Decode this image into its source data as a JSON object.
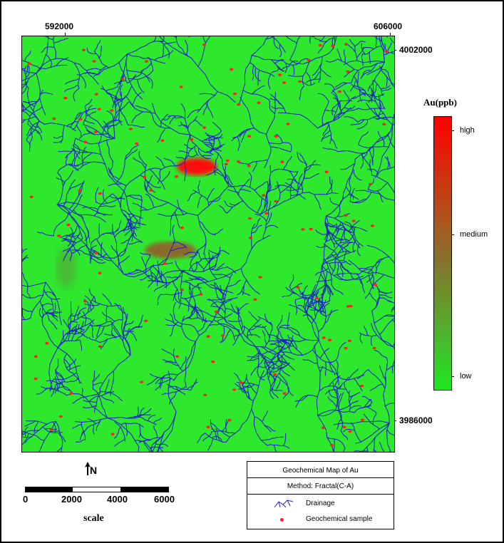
{
  "coords": {
    "x_left": "592000",
    "x_right": "606000",
    "y_top": "4002000",
    "y_bottom": "3986000"
  },
  "legend": {
    "variable": "Au(ppb)",
    "high": "high",
    "medium": "medium",
    "low": "low",
    "colors": {
      "high": "#ff0000",
      "medium": "#8c6c2c",
      "low": "#1ee81e"
    }
  },
  "map": {
    "background_color": "#2ee82e",
    "drainage_color": "#1c1cc8",
    "sample_color": "#ff2020"
  },
  "north": {
    "label": "N",
    "arrow_icon": "north-arrow-icon"
  },
  "scale": {
    "ticks": [
      "0",
      "2000",
      "4000",
      "6000"
    ],
    "label": "scale"
  },
  "info_box": {
    "title": "Geochemical Map of Au",
    "method": "Method: Fractal(C-A)",
    "drainage_label": "Drainage",
    "sample_label": "Geochemical sample"
  }
}
